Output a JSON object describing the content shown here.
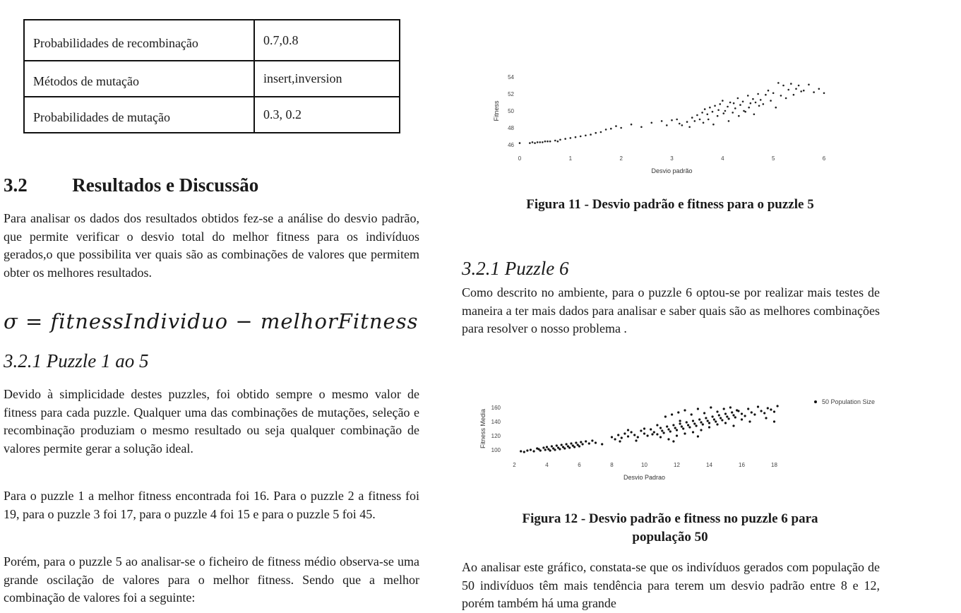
{
  "table": {
    "rows": [
      {
        "label": "Probabilidades de recombinação",
        "value": "0.7,0.8"
      },
      {
        "label": "Métodos de mutação",
        "value": "insert,inversion"
      },
      {
        "label": "Probabilidades de mutação",
        "value": "0.3, 0.2"
      }
    ]
  },
  "left": {
    "section_number": "3.2",
    "section_title": "Resultados e Discussão",
    "intro": "Para analisar os dados dos resultados obtidos fez-se a análise do desvio padrão, que permite verificar o desvio total do melhor fitness para os indivíduos gerados,o que possibilita ver quais são as combinações de valores que permitem obter os melhores resultados.",
    "formula": "σ = fitnessIndividuo − melhorFitness",
    "subsection": "3.2.1 Puzzle 1 ao 5",
    "p1": "Devido à simplicidade destes puzzles, foi obtido sempre o mesmo valor de fitness para cada puzzle. Qualquer uma das combinações de mutações, seleção e recombinação produziam o mesmo resultado ou seja qualquer combinação de valores permite gerar a solução ideal.",
    "p2": "Para o puzzle 1 a melhor fitness encontrada foi 16. Para o puzzle 2 a fitness foi 19, para o puzzle 3 foi 17, para o puzzle 4 foi 15 e para o puzzle 5 foi 45.",
    "p3": "Porém, para o puzzle 5 ao analisar-se o ficheiro de fitness médio observa-se uma grande oscilação de valores para o melhor fitness. Sendo que a melhor combinação de valores foi a seguinte:"
  },
  "right": {
    "caption11": "Figura 11 - Desvio padrão e fitness para o puzzle 5",
    "subsection": "3.2.1 Puzzle 6",
    "p1": "Como descrito no ambiente, para o puzzle 6 optou-se por realizar mais testes de maneira a ter mais dados para analisar e saber quais são as melhores combinações para resolver o nosso problema .",
    "caption12_l1": "Figura 12 - Desvio padrão e fitness no puzzle 6 para",
    "caption12_l2": "população 50",
    "p2": "Ao analisar este gráfico, constata-se que os indivíduos gerados com população de 50 indivíduos têm mais tendência para terem um desvio padrão entre 8 e 12, porém também há uma grande"
  },
  "chart_data": [
    {
      "type": "scatter",
      "xlabel": "Desvio padrão",
      "ylabel": "Fitness",
      "xticks": [
        0,
        1,
        2,
        3,
        4,
        5,
        6
      ],
      "yticks": [
        46,
        48,
        50,
        52,
        54
      ],
      "xlim": [
        0,
        6
      ],
      "ylim": [
        45.5,
        54.5
      ],
      "color": "#222222",
      "series": [
        {
          "points": [
            [
              0,
              46.2
            ],
            [
              0.2,
              46.2
            ],
            [
              0.25,
              46.3
            ],
            [
              0.3,
              46.2
            ],
            [
              0.35,
              46.3
            ],
            [
              0.4,
              46.3
            ],
            [
              0.45,
              46.3
            ],
            [
              0.5,
              46.4
            ],
            [
              0.55,
              46.4
            ],
            [
              0.6,
              46.4
            ],
            [
              0.7,
              46.5
            ],
            [
              0.75,
              46.4
            ],
            [
              0.8,
              46.6
            ],
            [
              0.9,
              46.7
            ],
            [
              1.0,
              46.8
            ],
            [
              1.1,
              46.9
            ],
            [
              1.2,
              47.0
            ],
            [
              1.3,
              47.1
            ],
            [
              1.4,
              47.2
            ],
            [
              1.5,
              47.4
            ],
            [
              1.6,
              47.5
            ],
            [
              1.7,
              47.8
            ],
            [
              1.8,
              47.9
            ],
            [
              1.9,
              48.2
            ],
            [
              2.0,
              48.0
            ],
            [
              2.2,
              48.4
            ],
            [
              2.4,
              48.1
            ],
            [
              2.6,
              48.6
            ],
            [
              2.8,
              48.8
            ],
            [
              2.9,
              48.3
            ],
            [
              3.0,
              48.9
            ],
            [
              3.1,
              49.0
            ],
            [
              3.15,
              48.5
            ],
            [
              3.2,
              48.3
            ],
            [
              3.3,
              48.7
            ],
            [
              3.35,
              48.1
            ],
            [
              3.4,
              49.2
            ],
            [
              3.45,
              48.8
            ],
            [
              3.5,
              49.5
            ],
            [
              3.55,
              49.0
            ],
            [
              3.6,
              49.8
            ],
            [
              3.62,
              48.6
            ],
            [
              3.65,
              50.2
            ],
            [
              3.7,
              49.6
            ],
            [
              3.72,
              49.0
            ],
            [
              3.75,
              50.4
            ],
            [
              3.8,
              49.9
            ],
            [
              3.82,
              48.4
            ],
            [
              3.85,
              50.6
            ],
            [
              3.9,
              49.4
            ],
            [
              3.92,
              50.1
            ],
            [
              3.95,
              50.8
            ],
            [
              4.0,
              51.2
            ],
            [
              4.02,
              49.7
            ],
            [
              4.05,
              50.0
            ],
            [
              4.1,
              50.5
            ],
            [
              4.12,
              48.8
            ],
            [
              4.15,
              51.0
            ],
            [
              4.2,
              49.8
            ],
            [
              4.22,
              50.9
            ],
            [
              4.25,
              50.3
            ],
            [
              4.3,
              51.5
            ],
            [
              4.32,
              49.4
            ],
            [
              4.35,
              50.7
            ],
            [
              4.4,
              51.1
            ],
            [
              4.42,
              50.0
            ],
            [
              4.45,
              49.9
            ],
            [
              4.5,
              51.8
            ],
            [
              4.52,
              50.4
            ],
            [
              4.55,
              50.9
            ],
            [
              4.6,
              51.4
            ],
            [
              4.62,
              49.6
            ],
            [
              4.65,
              51.0
            ],
            [
              4.7,
              52.0
            ],
            [
              4.72,
              50.6
            ],
            [
              4.75,
              51.3
            ],
            [
              4.8,
              50.8
            ],
            [
              4.85,
              51.9
            ],
            [
              4.9,
              52.4
            ],
            [
              4.95,
              51.2
            ],
            [
              5.0,
              52.1
            ],
            [
              5.05,
              50.4
            ],
            [
              5.1,
              53.3
            ],
            [
              5.15,
              51.8
            ],
            [
              5.2,
              53.0
            ],
            [
              5.25,
              51.5
            ],
            [
              5.3,
              52.5
            ],
            [
              5.35,
              53.2
            ],
            [
              5.4,
              51.9
            ],
            [
              5.45,
              52.6
            ],
            [
              5.5,
              53.0
            ],
            [
              5.55,
              52.3
            ],
            [
              5.6,
              52.4
            ],
            [
              5.7,
              53.1
            ],
            [
              5.8,
              52.2
            ],
            [
              5.9,
              52.6
            ],
            [
              6.0,
              52.1
            ]
          ]
        }
      ]
    },
    {
      "type": "scatter",
      "xlabel": "Desvio Padrao",
      "ylabel": "Fitness Media",
      "xticks": [
        2,
        4,
        6,
        8,
        10,
        12,
        14,
        16,
        18
      ],
      "yticks": [
        100,
        120,
        140,
        160
      ],
      "xlim": [
        1.5,
        18.5
      ],
      "ylim": [
        92,
        168
      ],
      "color": "#111111",
      "series": [
        {
          "name": "50 Population Size",
          "points": [
            [
              2.4,
              98
            ],
            [
              2.6,
              97
            ],
            [
              2.8,
              99
            ],
            [
              3.0,
              100
            ],
            [
              3.2,
              98
            ],
            [
              3.4,
              102
            ],
            [
              3.5,
              101
            ],
            [
              3.6,
              99
            ],
            [
              3.8,
              103
            ],
            [
              3.9,
              100
            ],
            [
              4.0,
              104
            ],
            [
              4.1,
              101
            ],
            [
              4.2,
              99
            ],
            [
              4.3,
              105
            ],
            [
              4.4,
              102
            ],
            [
              4.5,
              100
            ],
            [
              4.6,
              106
            ],
            [
              4.7,
              103
            ],
            [
              4.8,
              101
            ],
            [
              4.9,
              107
            ],
            [
              5.0,
              104
            ],
            [
              5.1,
              102
            ],
            [
              5.2,
              108
            ],
            [
              5.3,
              105
            ],
            [
              5.4,
              103
            ],
            [
              5.5,
              109
            ],
            [
              5.6,
              106
            ],
            [
              5.7,
              104
            ],
            [
              5.8,
              110
            ],
            [
              5.9,
              107
            ],
            [
              6.0,
              105
            ],
            [
              6.1,
              111
            ],
            [
              6.2,
              108
            ],
            [
              6.4,
              112
            ],
            [
              6.6,
              109
            ],
            [
              6.8,
              113
            ],
            [
              7.0,
              110
            ],
            [
              7.4,
              108
            ],
            [
              8.0,
              118
            ],
            [
              8.2,
              115
            ],
            [
              8.4,
              121
            ],
            [
              8.6,
              117
            ],
            [
              8.8,
              123
            ],
            [
              9.0,
              119
            ],
            [
              9.2,
              125
            ],
            [
              9.4,
              121
            ],
            [
              9.6,
              118
            ],
            [
              9.8,
              127
            ],
            [
              10.0,
              123
            ],
            [
              10.2,
              120
            ],
            [
              10.4,
              129
            ],
            [
              10.6,
              125
            ],
            [
              10.8,
              122
            ],
            [
              11.0,
              131
            ],
            [
              11.1,
              127
            ],
            [
              11.2,
              124
            ],
            [
              11.3,
              147
            ],
            [
              11.4,
              133
            ],
            [
              11.5,
              129
            ],
            [
              11.6,
              126
            ],
            [
              11.7,
              150
            ],
            [
              11.8,
              135
            ],
            [
              11.9,
              131
            ],
            [
              12.0,
              128
            ],
            [
              12.1,
              153
            ],
            [
              12.2,
              137
            ],
            [
              12.3,
              133
            ],
            [
              12.4,
              130
            ],
            [
              12.5,
              156
            ],
            [
              12.6,
              139
            ],
            [
              12.7,
              135
            ],
            [
              12.8,
              132
            ],
            [
              12.9,
              150
            ],
            [
              13.0,
              141
            ],
            [
              13.1,
              137
            ],
            [
              13.2,
              134
            ],
            [
              13.3,
              158
            ],
            [
              13.4,
              143
            ],
            [
              13.5,
              139
            ],
            [
              13.6,
              136
            ],
            [
              13.7,
              152
            ],
            [
              13.8,
              145
            ],
            [
              13.9,
              141
            ],
            [
              14.0,
              138
            ],
            [
              14.1,
              160
            ],
            [
              14.2,
              147
            ],
            [
              14.3,
              143
            ],
            [
              14.4,
              140
            ],
            [
              14.5,
              154
            ],
            [
              14.6,
              149
            ],
            [
              14.7,
              145
            ],
            [
              14.8,
              142
            ],
            [
              14.9,
              158
            ],
            [
              15.0,
              151
            ],
            [
              15.1,
              147
            ],
            [
              15.2,
              144
            ],
            [
              15.3,
              160
            ],
            [
              15.4,
              153
            ],
            [
              15.5,
              149
            ],
            [
              15.6,
              146
            ],
            [
              15.7,
              156
            ],
            [
              15.8,
              155
            ],
            [
              16.0,
              151
            ],
            [
              16.2,
              148
            ],
            [
              16.4,
              158
            ],
            [
              16.6,
              153
            ],
            [
              16.8,
              150
            ],
            [
              17.0,
              161
            ],
            [
              17.2,
              155
            ],
            [
              17.4,
              152
            ],
            [
              17.6,
              159
            ],
            [
              17.8,
              157
            ],
            [
              18.0,
              154
            ],
            [
              18.2,
              162
            ],
            [
              10.5,
              122
            ],
            [
              11.0,
              118
            ],
            [
              9.5,
              113
            ],
            [
              12.0,
              120
            ],
            [
              13.0,
              125
            ],
            [
              10.0,
              130
            ],
            [
              14.0,
              132
            ],
            [
              11.5,
              115
            ],
            [
              12.5,
              123
            ],
            [
              9.0,
              128
            ],
            [
              15.0,
              138
            ],
            [
              16.5,
              140
            ],
            [
              13.5,
              128
            ],
            [
              14.5,
              136
            ],
            [
              8.5,
              112
            ],
            [
              10.8,
              135
            ],
            [
              12.2,
              141
            ],
            [
              11.8,
              112
            ],
            [
              13.3,
              119
            ],
            [
              15.5,
              134
            ],
            [
              16.0,
              143
            ],
            [
              17.5,
              145
            ],
            [
              18.0,
              140
            ]
          ]
        }
      ]
    }
  ]
}
